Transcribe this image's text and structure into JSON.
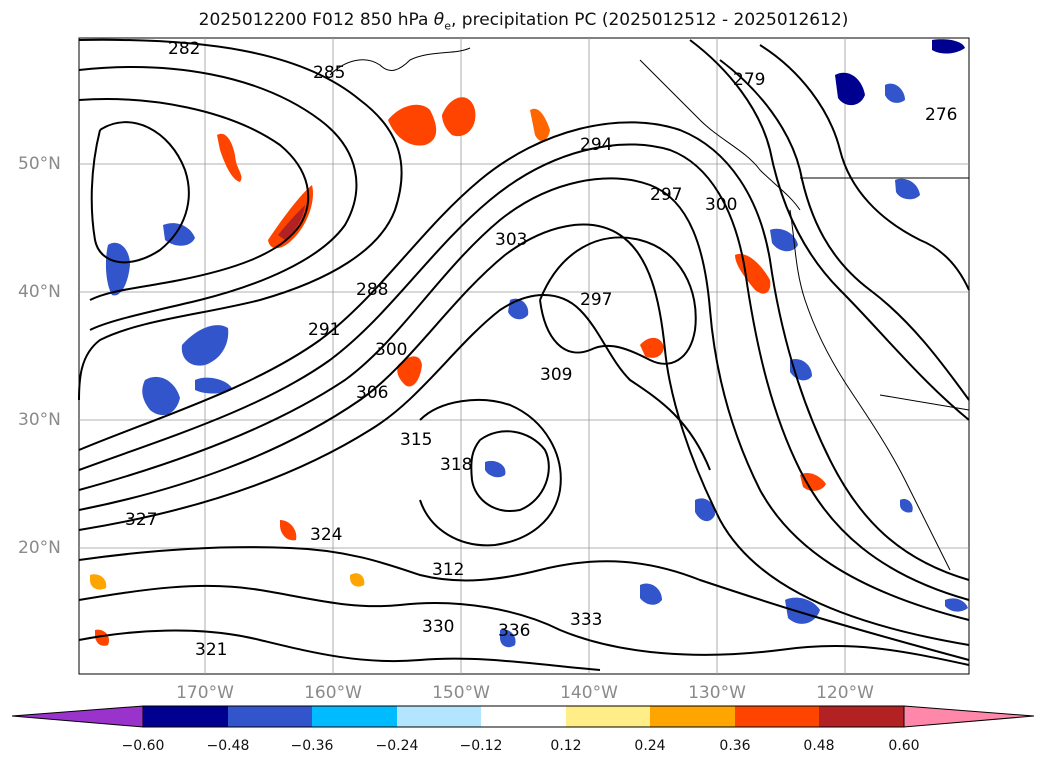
{
  "title": {
    "run": "2025012200 F012 850 hPa ",
    "theta_symbol": "θ",
    "theta_sub": "e",
    "rest": ", precipitation PC (2025012512 - 2025012612)"
  },
  "map": {
    "lat_labels": [
      "50°N",
      "40°N",
      "30°N",
      "20°N"
    ],
    "lon_labels": [
      "170°W",
      "160°W",
      "150°W",
      "140°W",
      "130°W",
      "120°W"
    ],
    "contour_labels": [
      "282",
      "285",
      "288",
      "291",
      "294",
      "297",
      "300",
      "303",
      "306",
      "309",
      "312",
      "315",
      "318",
      "321",
      "324",
      "327",
      "330",
      "333",
      "336",
      "279",
      "276",
      "297",
      "300"
    ]
  },
  "colorbar": {
    "ticks": [
      "−0.60",
      "−0.48",
      "−0.36",
      "−0.24",
      "−0.12",
      "0.12",
      "0.24",
      "0.36",
      "0.48",
      "0.60"
    ],
    "colors": [
      "#9933cc",
      "#000090",
      "#3355cc",
      "#00bbff",
      "#b3e5ff",
      "#ffffff",
      "#ffee88",
      "#ffa500",
      "#ff4400",
      "#b22222",
      "#ff88aa"
    ]
  }
}
